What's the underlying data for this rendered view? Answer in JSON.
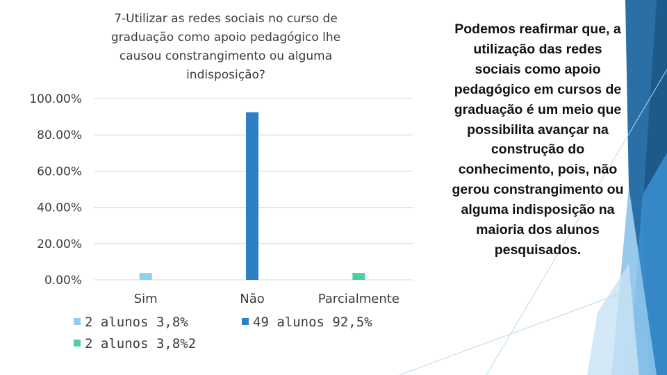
{
  "slide": {
    "body_text": "Podemos reafirmar que, a utilização das redes sociais como apoio pedagógico em cursos de graduação é um meio que possibilita avançar na construção do conhecimento, pois, não gerou constrangimento ou alguma indisposição na maioria dos alunos pesquisados.",
    "accent_colors": [
      "#2a6fa6",
      "#3b8fd0",
      "#8cc3ea",
      "#1d5a8c"
    ]
  },
  "chart_data": {
    "type": "bar",
    "title_lines": [
      "7-Utilizar as redes sociais no curso de",
      "graduação como apoio pedagógico lhe",
      "causou constrangimento ou alguma",
      "indisposição?"
    ],
    "categories": [
      "Sim",
      "Não",
      "Parcialmente"
    ],
    "y_ticks": [
      "100.00%",
      "80.00%",
      "60.00%",
      "40.00%",
      "20.00%",
      "0.00%"
    ],
    "ylim": [
      0,
      100
    ],
    "grid": true,
    "series": [
      {
        "name": "2 alunos 3,8%",
        "color": "#8fd0f0",
        "values": [
          3.8,
          null,
          null
        ]
      },
      {
        "name": "49 alunos 92,5%",
        "color": "#2f7fc4",
        "values": [
          null,
          92.5,
          null
        ]
      },
      {
        "name": "2 alunos 3,8%2",
        "color": "#4ccfa0",
        "values": [
          null,
          null,
          3.8
        ]
      }
    ],
    "legend_position": "bottom"
  }
}
